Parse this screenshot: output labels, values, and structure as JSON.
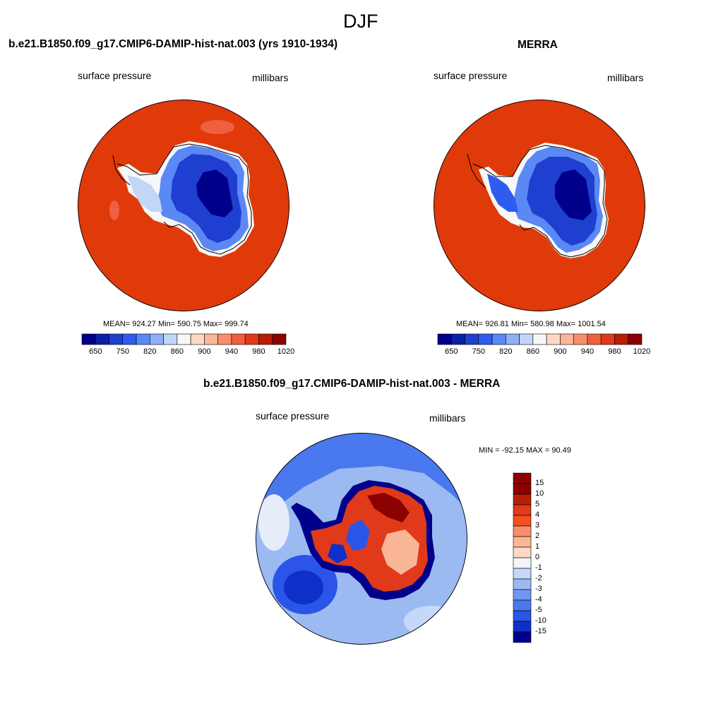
{
  "page": {
    "title": "DJF"
  },
  "panels": [
    {
      "id": "model",
      "title": "b.e21.B1850.f09_g17.CMIP6-DAMIP-hist-nat.003 (yrs 1910-1934)",
      "left_label": "surface pressure",
      "right_label": "millibars",
      "stats": "MEAN= 924.27  Min= 590.75  Max= 999.74",
      "colorbar_ticks": [
        "650",
        "750",
        "820",
        "860",
        "900",
        "940",
        "980",
        "1020"
      ]
    },
    {
      "id": "merra",
      "title": "MERRA",
      "left_label": "surface pressure",
      "right_label": "millibars",
      "stats": "MEAN= 926.81  Min= 580.98  Max= 1001.54",
      "colorbar_ticks": [
        "650",
        "750",
        "820",
        "860",
        "900",
        "940",
        "980",
        "1020"
      ]
    },
    {
      "id": "difference",
      "title": "b.e21.B1850.f09_g17.CMIP6-DAMIP-hist-nat.003 - MERRA",
      "left_label": "surface pressure",
      "right_label": "millibars",
      "stats": "MIN = -92.15 MAX =  90.49",
      "colorbar_ticks": [
        "15",
        "10",
        "5",
        "4",
        "3",
        "2",
        "1",
        "0",
        "-1",
        "-2",
        "-3",
        "-4",
        "-5",
        "-10",
        "-15"
      ]
    }
  ],
  "colors": {
    "pressure_scale": [
      "#00008b",
      "#0a1fa8",
      "#1f3fd0",
      "#2f5cf0",
      "#5a88f5",
      "#8fb0f5",
      "#c2d6f8",
      "#f7f7f7",
      "#fdd9c4",
      "#fbb698",
      "#f88e6d",
      "#ef6041",
      "#e03a1a",
      "#b81d06",
      "#8b0000"
    ],
    "diff_scale": [
      "#8b0000",
      "#b81d06",
      "#e03a1a",
      "#f4511e",
      "#f88e6d",
      "#fbb698",
      "#fdd9c4",
      "#f2f4f8",
      "#c6d8f8",
      "#9cbaf2",
      "#7098f0",
      "#4a78ee",
      "#2a55e8",
      "#0e2fc8",
      "#00008b"
    ],
    "ocean_field": "#e03a0a"
  }
}
